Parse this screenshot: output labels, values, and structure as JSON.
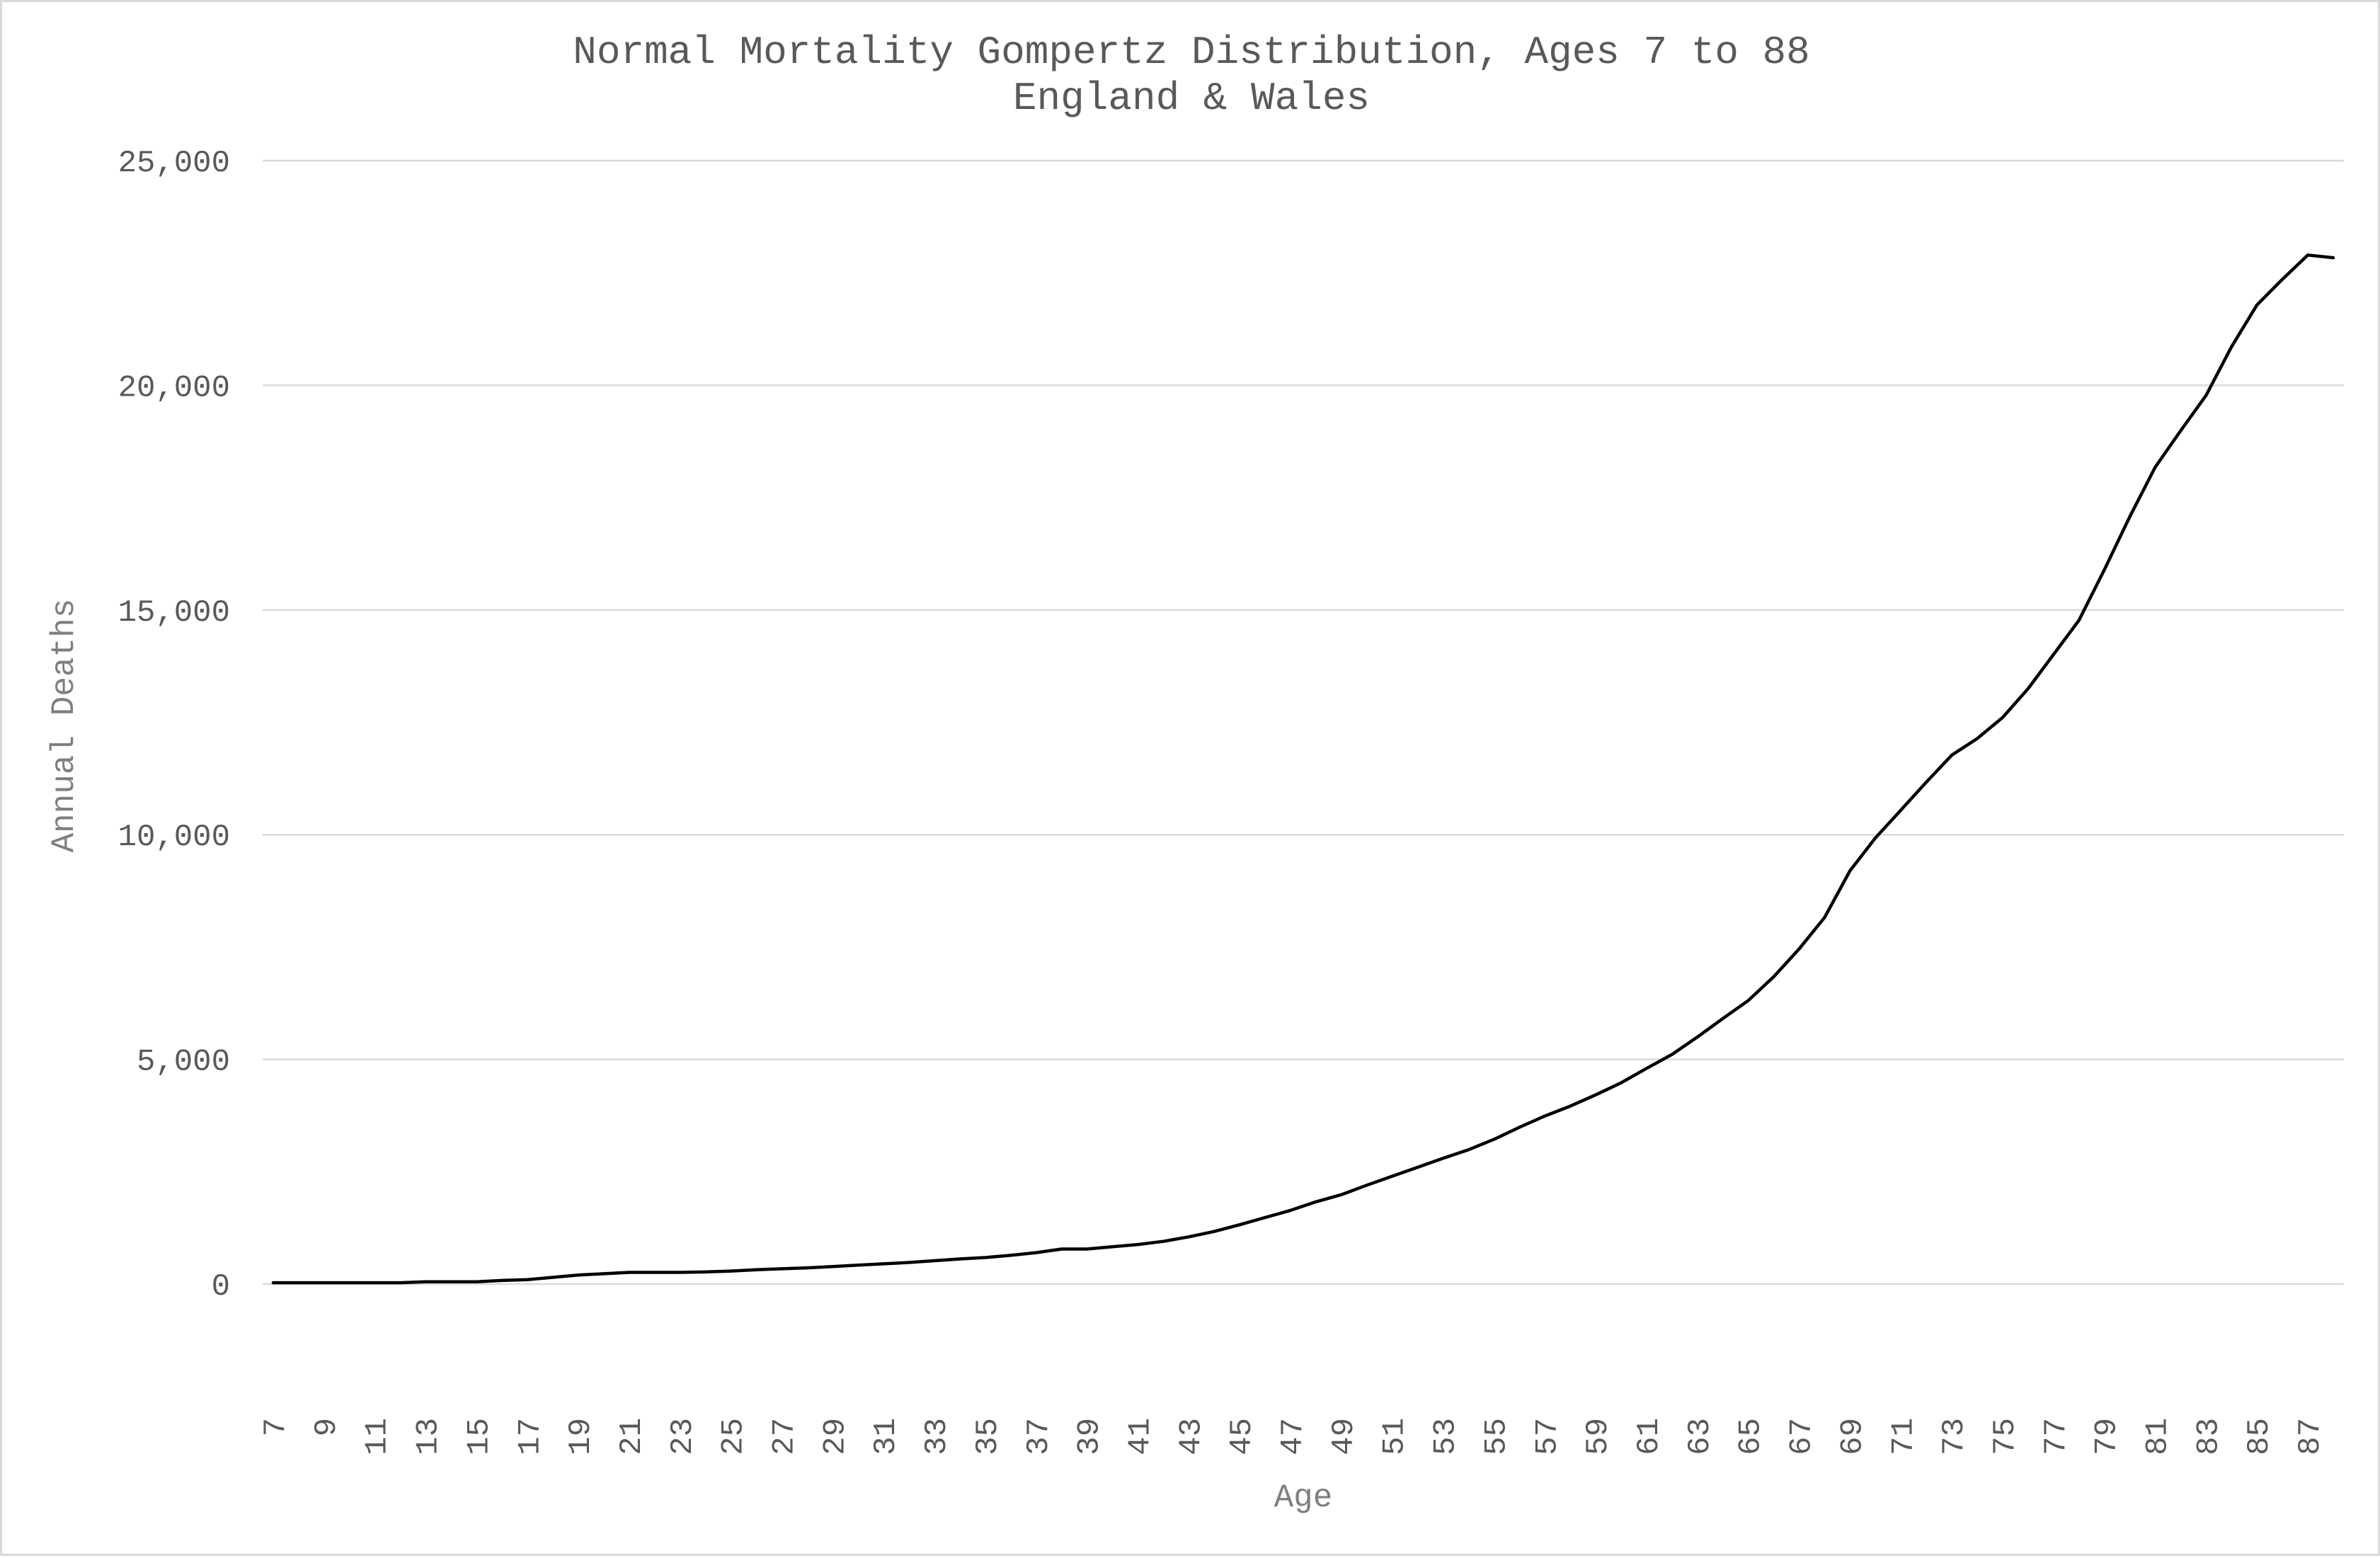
{
  "chart_data": {
    "type": "line",
    "title": "Normal Mortality Gompertz Distribution, Ages 7 to 88",
    "subtitle": "England & Wales",
    "xlabel": "Age",
    "ylabel": "Annual Deaths",
    "ylim": [
      -2000,
      25000
    ],
    "yticks": [
      0,
      5000,
      10000,
      15000,
      20000,
      25000
    ],
    "ytick_labels": [
      "0",
      "5,000",
      "10,000",
      "15,000",
      "20,000",
      "25,000"
    ],
    "grid": true,
    "legend": "none",
    "line_color": "#000000",
    "x": [
      7,
      8,
      9,
      10,
      11,
      12,
      13,
      14,
      15,
      16,
      17,
      18,
      19,
      20,
      21,
      22,
      23,
      24,
      25,
      26,
      27,
      28,
      29,
      30,
      31,
      32,
      33,
      34,
      35,
      36,
      37,
      38,
      39,
      40,
      41,
      42,
      43,
      44,
      45,
      46,
      47,
      48,
      49,
      50,
      51,
      52,
      53,
      54,
      55,
      56,
      57,
      58,
      59,
      60,
      61,
      62,
      63,
      64,
      65,
      66,
      67,
      68,
      69,
      70,
      71,
      72,
      73,
      74,
      75,
      76,
      77,
      78,
      79,
      80,
      81,
      82,
      83,
      84,
      85,
      86,
      87,
      88
    ],
    "x_tick_labels": [
      "7",
      "9",
      "11",
      "13",
      "15",
      "17",
      "19",
      "21",
      "23",
      "25",
      "27",
      "29",
      "31",
      "33",
      "35",
      "37",
      "39",
      "41",
      "43",
      "45",
      "47",
      "49",
      "51",
      "53",
      "55",
      "57",
      "59",
      "61",
      "63",
      "65",
      "67",
      "69",
      "71",
      "73",
      "75",
      "77",
      "79",
      "81",
      "83",
      "85",
      "87"
    ],
    "series": [
      {
        "values": [
          30,
          30,
          30,
          30,
          30,
          30,
          50,
          50,
          50,
          80,
          100,
          150,
          200,
          230,
          260,
          260,
          260,
          270,
          290,
          320,
          340,
          360,
          390,
          420,
          450,
          480,
          520,
          560,
          590,
          640,
          700,
          780,
          780,
          830,
          880,
          950,
          1050,
          1170,
          1320,
          1480,
          1640,
          1830,
          1990,
          2200,
          2400,
          2600,
          2800,
          2990,
          3220,
          3490,
          3740,
          3960,
          4210,
          4480,
          4800,
          5110,
          5500,
          5910,
          6310,
          6840,
          7460,
          8160,
          9200,
          9930,
          10550,
          11170,
          11770,
          12140,
          12610,
          13250,
          14010,
          14770,
          15900,
          17080,
          18180,
          18990,
          19780,
          20860,
          21790,
          22360,
          22900,
          22840
        ]
      }
    ]
  }
}
